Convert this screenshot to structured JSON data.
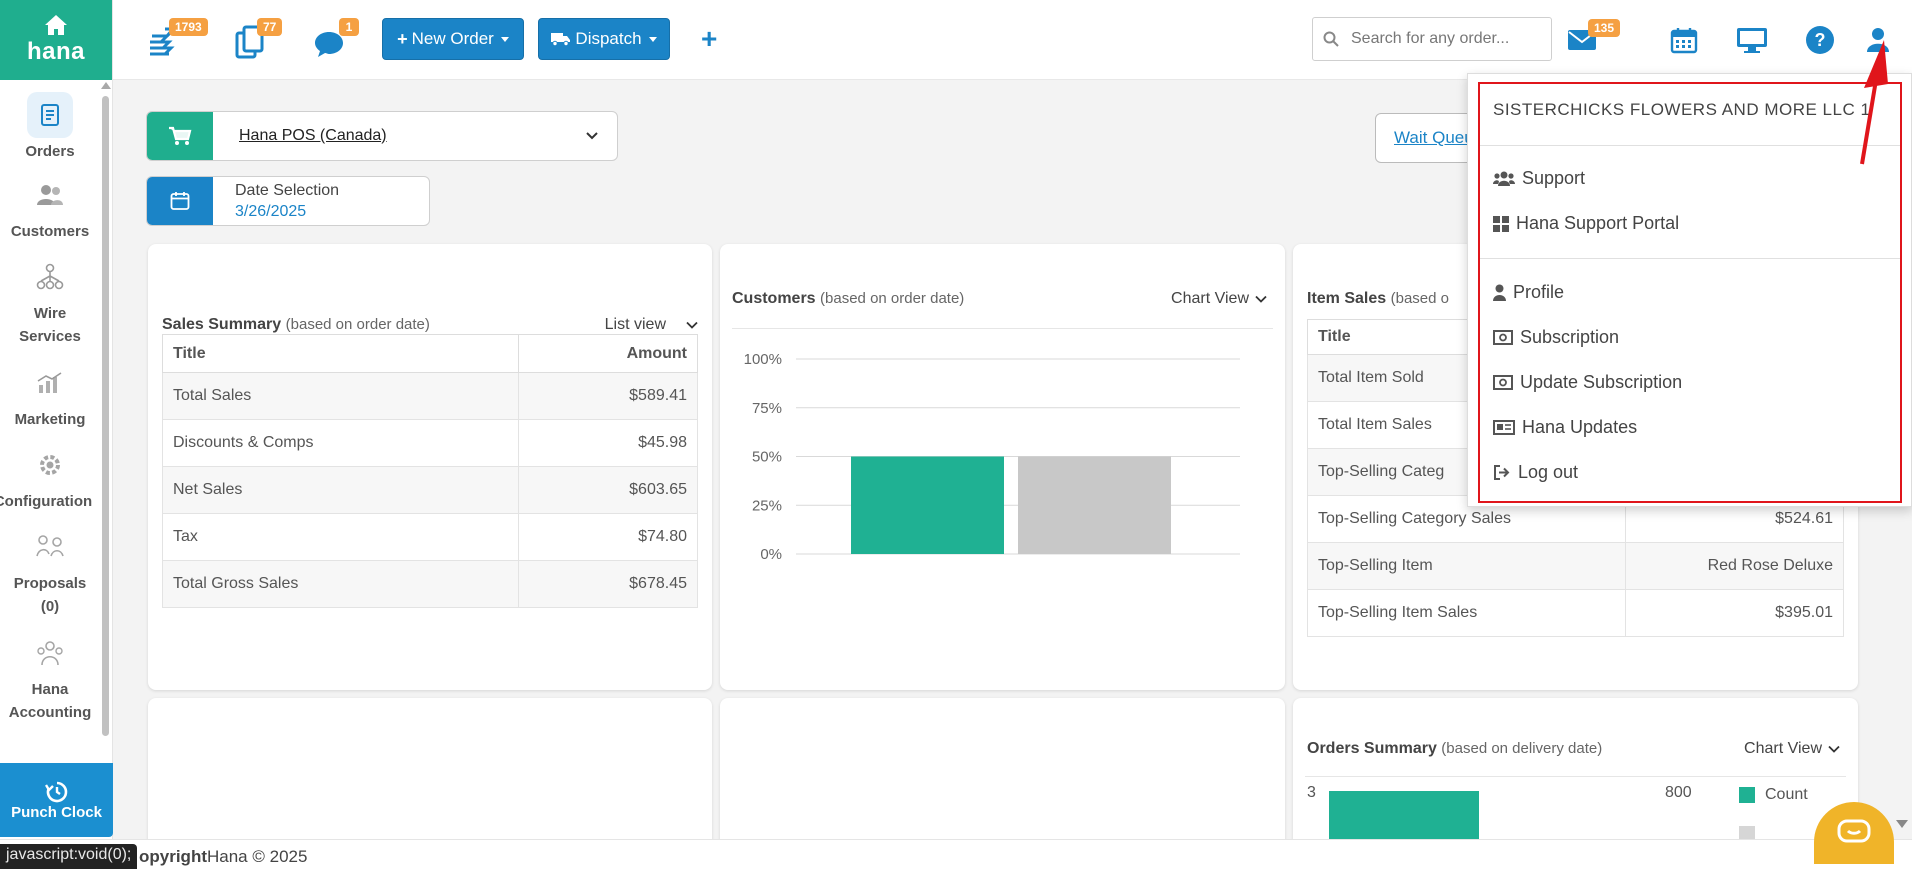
{
  "brand": {
    "name": "hana"
  },
  "sidebar": {
    "items": [
      {
        "label": "Orders"
      },
      {
        "label": "Customers"
      },
      {
        "label": "Wire Services"
      },
      {
        "label": "Marketing"
      },
      {
        "label": "Configuration"
      },
      {
        "label": "Proposals (0)"
      },
      {
        "label": "Hana Accounting"
      }
    ],
    "punch_clock": "Punch Clock"
  },
  "topbar": {
    "badges": {
      "tasks": "1793",
      "copies": "77",
      "messages": "1",
      "mail": "135"
    },
    "new_order": "New Order",
    "dispatch": "Dispatch",
    "search_placeholder": "Search for any order..."
  },
  "main": {
    "store": "Hana POS (Canada)",
    "date_label": "Date Selection",
    "date_value": "3/26/2025",
    "wait_queue": "Wait Queue"
  },
  "sales_summary": {
    "title": "Sales Summary",
    "subtitle": "(based on order date)",
    "view": "List view",
    "headers": [
      "Title",
      "Amount"
    ],
    "rows": [
      [
        "Total Sales",
        "$589.41"
      ],
      [
        "Discounts & Comps",
        "$45.98"
      ],
      [
        "Net Sales",
        "$603.65"
      ],
      [
        "Tax",
        "$74.80"
      ],
      [
        "Total Gross Sales",
        "$678.45"
      ]
    ]
  },
  "customers": {
    "title": "Customers",
    "subtitle": "(based on order date)",
    "view": "Chart View"
  },
  "chart_data": {
    "type": "bar",
    "title": "Customers",
    "y_ticks": [
      "100%",
      "75%",
      "50%",
      "25%",
      "0%"
    ],
    "ylim": [
      0,
      100
    ],
    "series": [
      {
        "values": [
          50
        ]
      },
      {
        "values": [
          50
        ]
      }
    ],
    "colors": [
      "#1fb193",
      "#c8c8c8"
    ],
    "grid": true
  },
  "item_sales": {
    "title": "Item Sales",
    "subtitle": "(based o",
    "headers": [
      "Title",
      ""
    ],
    "rows": [
      [
        "Total Item Sold",
        ""
      ],
      [
        "Total Item Sales",
        ""
      ],
      [
        "Top-Selling Categ",
        ""
      ],
      [
        "Top-Selling Category Sales",
        "$524.61"
      ],
      [
        "Top-Selling Item",
        "Red Rose Deluxe"
      ],
      [
        "Top-Selling Item Sales",
        "$395.01"
      ]
    ]
  },
  "orders_summary": {
    "title": "Orders Summary",
    "subtitle": "(based on delivery date)",
    "view": "Chart View",
    "left_tick": "3",
    "right_tick": "800",
    "legend": "Count"
  },
  "footer": {
    "copyright_bold": "opyright",
    "copyright_rest": "Hana © 2025"
  },
  "status_tip": "javascript:void(0);",
  "user_menu": {
    "org": "SISTERCHICKS FLOWERS AND MORE LLC 1",
    "items": [
      "Support",
      "Hana Support Portal",
      "Profile",
      "Subscription",
      "Update Subscription",
      "Hana Updates",
      "Log out"
    ]
  },
  "colors": {
    "teal": "#1fae8e",
    "blue": "#1b84c7",
    "badge": "#f5a042",
    "highlight": "#e0151b"
  }
}
